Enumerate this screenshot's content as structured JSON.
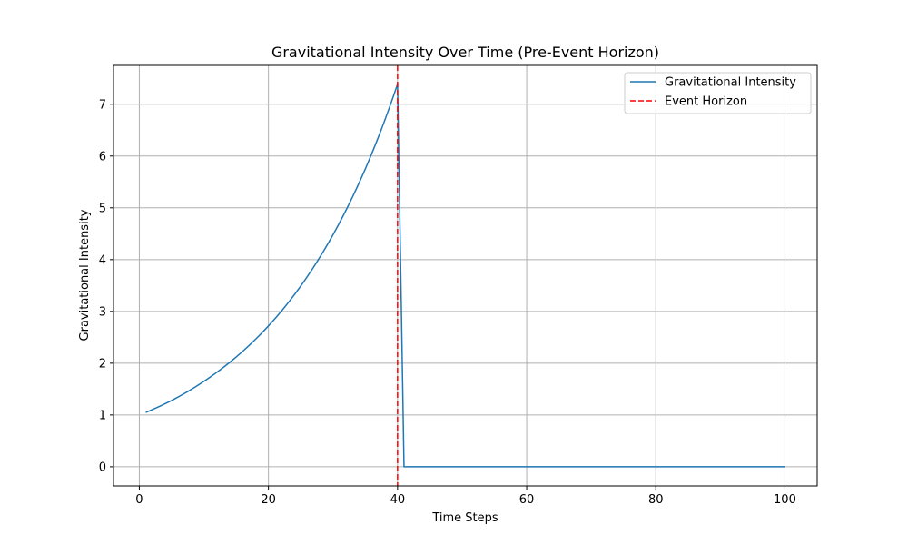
{
  "chart_data": {
    "type": "line",
    "title": "Gravitational Intensity Over Time (Pre-Event Horizon)",
    "xlabel": "Time Steps",
    "ylabel": "Gravitational Intensity",
    "xlim": [
      -4,
      105
    ],
    "ylim": [
      -0.37,
      7.75
    ],
    "xticks": [
      0,
      20,
      40,
      60,
      80,
      100
    ],
    "yticks": [
      0,
      1,
      2,
      3,
      4,
      5,
      6,
      7
    ],
    "grid": true,
    "legend_position": "top-right",
    "series": [
      {
        "name": "Gravitational Intensity",
        "color": "#1f77b4",
        "style": "solid",
        "x": [
          1,
          5,
          10,
          15,
          20,
          25,
          30,
          35,
          40,
          41,
          100
        ],
        "y": [
          1.05,
          1.28,
          1.65,
          2.12,
          2.72,
          3.49,
          4.48,
          5.75,
          7.39,
          0.0,
          0.0
        ]
      }
    ],
    "vlines": [
      {
        "name": "Event Horizon",
        "x": 40,
        "color": "#ff0000",
        "style": "dashed"
      }
    ]
  }
}
